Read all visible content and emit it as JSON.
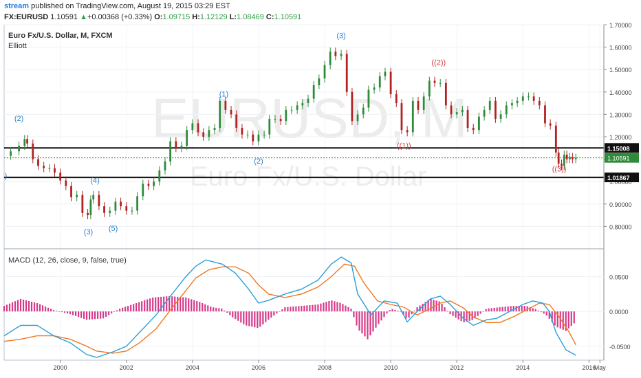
{
  "header": {
    "brand": "stream",
    "published": "published on TradingView.com, August 19, 2015 03:29 EST",
    "symbol": "FX:EURUSD",
    "last": "1.10591",
    "change": "+0.00368 (+0.33%)",
    "open_label": "O:",
    "open": "1.09715",
    "high_label": "H:",
    "high": "1.12129",
    "low_label": "L:",
    "low": "1.08469",
    "close_label": "C:",
    "close": "1.10591",
    "up_color": "#2e9e44"
  },
  "chart_data": [
    {
      "type": "candlestick",
      "title": "Euro Fx/U.S. Dollar, M, FXCM",
      "study": "Elliott",
      "watermark_symbol": "EURUSD, M",
      "watermark_name": "Euro Fx/U.S. Dollar",
      "x_range": [
        1998.3,
        2016.45
      ],
      "ylim": [
        0.7,
        1.7
      ],
      "y_ticks": [
        "1.70000",
        "1.60000",
        "1.50000",
        "1.40000",
        "1.30000",
        "1.20000",
        "1.10000",
        "1.00000",
        "0.90000",
        "0.80000"
      ],
      "x_ticks": [
        "2000",
        "2002",
        "2004",
        "2006",
        "2008",
        "2010",
        "2012",
        "2014",
        "2016",
        "May"
      ],
      "up_color": "#2e8b3a",
      "down_color": "#b22222",
      "closes": [
        [
          1998.5,
          1.135
        ],
        [
          1998.75,
          1.16
        ],
        [
          1998.92,
          1.19
        ],
        [
          1999.0,
          1.17
        ],
        [
          1999.17,
          1.1
        ],
        [
          1999.33,
          1.07
        ],
        [
          1999.5,
          1.06
        ],
        [
          1999.67,
          1.06
        ],
        [
          1999.83,
          1.04
        ],
        [
          2000.0,
          1.005
        ],
        [
          2000.17,
          0.98
        ],
        [
          2000.33,
          0.93
        ],
        [
          2000.5,
          0.94
        ],
        [
          2000.67,
          0.86
        ],
        [
          2000.83,
          0.85
        ],
        [
          2000.92,
          0.92
        ],
        [
          2001.0,
          0.94
        ],
        [
          2001.17,
          0.89
        ],
        [
          2001.33,
          0.86
        ],
        [
          2001.5,
          0.87
        ],
        [
          2001.67,
          0.91
        ],
        [
          2001.83,
          0.89
        ],
        [
          2002.0,
          0.87
        ],
        [
          2002.17,
          0.87
        ],
        [
          2002.33,
          0.935
        ],
        [
          2002.5,
          0.99
        ],
        [
          2002.67,
          0.98
        ],
        [
          2002.83,
          1.0
        ],
        [
          2003.0,
          1.05
        ],
        [
          2003.17,
          1.09
        ],
        [
          2003.33,
          1.18
        ],
        [
          2003.5,
          1.15
        ],
        [
          2003.67,
          1.16
        ],
        [
          2003.83,
          1.23
        ],
        [
          2004.0,
          1.26
        ],
        [
          2004.17,
          1.22
        ],
        [
          2004.33,
          1.2
        ],
        [
          2004.5,
          1.23
        ],
        [
          2004.67,
          1.24
        ],
        [
          2004.83,
          1.36
        ],
        [
          2005.0,
          1.32
        ],
        [
          2005.17,
          1.3
        ],
        [
          2005.33,
          1.24
        ],
        [
          2005.5,
          1.21
        ],
        [
          2005.67,
          1.21
        ],
        [
          2005.83,
          1.18
        ],
        [
          2006.0,
          1.21
        ],
        [
          2006.17,
          1.21
        ],
        [
          2006.33,
          1.28
        ],
        [
          2006.5,
          1.28
        ],
        [
          2006.67,
          1.27
        ],
        [
          2006.83,
          1.32
        ],
        [
          2007.0,
          1.32
        ],
        [
          2007.17,
          1.34
        ],
        [
          2007.33,
          1.35
        ],
        [
          2007.5,
          1.37
        ],
        [
          2007.67,
          1.43
        ],
        [
          2007.83,
          1.46
        ],
        [
          2008.0,
          1.52
        ],
        [
          2008.17,
          1.58
        ],
        [
          2008.33,
          1.56
        ],
        [
          2008.5,
          1.57
        ],
        [
          2008.67,
          1.4
        ],
        [
          2008.83,
          1.27
        ],
        [
          2009.0,
          1.3
        ],
        [
          2009.17,
          1.33
        ],
        [
          2009.33,
          1.41
        ],
        [
          2009.5,
          1.42
        ],
        [
          2009.67,
          1.47
        ],
        [
          2009.83,
          1.49
        ],
        [
          2010.0,
          1.39
        ],
        [
          2010.17,
          1.35
        ],
        [
          2010.33,
          1.23
        ],
        [
          2010.5,
          1.22
        ],
        [
          2010.67,
          1.36
        ],
        [
          2010.83,
          1.32
        ],
        [
          2011.0,
          1.38
        ],
        [
          2011.17,
          1.45
        ],
        [
          2011.33,
          1.44
        ],
        [
          2011.5,
          1.44
        ],
        [
          2011.67,
          1.34
        ],
        [
          2011.83,
          1.3
        ],
        [
          2012.0,
          1.31
        ],
        [
          2012.17,
          1.32
        ],
        [
          2012.33,
          1.24
        ],
        [
          2012.5,
          1.23
        ],
        [
          2012.67,
          1.29
        ],
        [
          2012.83,
          1.32
        ],
        [
          2013.0,
          1.36
        ],
        [
          2013.17,
          1.28
        ],
        [
          2013.33,
          1.3
        ],
        [
          2013.5,
          1.34
        ],
        [
          2013.67,
          1.35
        ],
        [
          2013.83,
          1.36
        ],
        [
          2014.0,
          1.38
        ],
        [
          2014.17,
          1.38
        ],
        [
          2014.33,
          1.36
        ],
        [
          2014.5,
          1.34
        ],
        [
          2014.67,
          1.26
        ],
        [
          2014.83,
          1.25
        ],
        [
          2015.0,
          1.13
        ],
        [
          2015.08,
          1.08
        ],
        [
          2015.17,
          1.07
        ],
        [
          2015.25,
          1.12
        ],
        [
          2015.33,
          1.1
        ],
        [
          2015.42,
          1.11
        ],
        [
          2015.5,
          1.1
        ],
        [
          2015.6,
          1.106
        ]
      ],
      "horizontal_lines": [
        {
          "y": 1.15008,
          "label": "1.15008",
          "style": "black"
        },
        {
          "y": 1.01867,
          "label": "1.01867",
          "style": "black"
        }
      ],
      "last_price": {
        "y": 1.10591,
        "label": "1.10591",
        "color": "#2e8b3a"
      },
      "wave_labels": [
        {
          "text": "(2)",
          "x": 1998.75,
          "y": 1.27,
          "color": "#2a7fd4"
        },
        {
          "text": ")",
          "x": 1998.35,
          "y": 1.015,
          "color": "#2a7fd4"
        },
        {
          "text": "(4)",
          "x": 2001.05,
          "y": 0.995,
          "color": "#2a7fd4"
        },
        {
          "text": "(3)",
          "x": 2000.85,
          "y": 0.765,
          "color": "#2a7fd4"
        },
        {
          "text": "(5)",
          "x": 2001.6,
          "y": 0.78,
          "color": "#2a7fd4"
        },
        {
          "text": "(1)",
          "x": 2004.95,
          "y": 1.38,
          "color": "#2a7fd4"
        },
        {
          "text": "(2)",
          "x": 2006.0,
          "y": 1.08,
          "color": "#2a7fd4"
        },
        {
          "text": "(3)",
          "x": 2008.5,
          "y": 1.64,
          "color": "#2a7fd4"
        },
        {
          "text": "((1))",
          "x": 2010.4,
          "y": 1.15,
          "color": "#d43a3a"
        },
        {
          "text": "((2))",
          "x": 2011.45,
          "y": 1.52,
          "color": "#d43a3a"
        },
        {
          "text": "((3))",
          "x": 2015.1,
          "y": 1.045,
          "color": "#d43a3a"
        }
      ]
    },
    {
      "type": "macd",
      "title": "MACD (12, 26, close, 9, false, true)",
      "ylim": [
        -0.07,
        0.09
      ],
      "y_ticks": [
        "0.0500",
        "0.0000",
        "-0.0500"
      ],
      "macd_color": "#2a9fd8",
      "signal_color": "#f07820",
      "hist_color": "#d63a8a",
      "macd": [
        [
          1998.3,
          -0.035
        ],
        [
          1998.8,
          -0.02
        ],
        [
          1999.3,
          -0.02
        ],
        [
          1999.8,
          -0.035
        ],
        [
          2000.3,
          -0.045
        ],
        [
          2000.8,
          -0.062
        ],
        [
          2001.1,
          -0.066
        ],
        [
          2001.6,
          -0.058
        ],
        [
          2002.0,
          -0.05
        ],
        [
          2002.4,
          -0.03
        ],
        [
          2002.9,
          -0.005
        ],
        [
          2003.3,
          0.02
        ],
        [
          2003.8,
          0.05
        ],
        [
          2004.1,
          0.065
        ],
        [
          2004.4,
          0.074
        ],
        [
          2004.9,
          0.068
        ],
        [
          2005.3,
          0.055
        ],
        [
          2005.7,
          0.032
        ],
        [
          2006.0,
          0.012
        ],
        [
          2006.3,
          0.016
        ],
        [
          2006.8,
          0.025
        ],
        [
          2007.3,
          0.032
        ],
        [
          2007.8,
          0.045
        ],
        [
          2008.2,
          0.068
        ],
        [
          2008.5,
          0.078
        ],
        [
          2008.8,
          0.07
        ],
        [
          2009.0,
          0.025
        ],
        [
          2009.4,
          -0.005
        ],
        [
          2009.8,
          0.015
        ],
        [
          2010.2,
          0.012
        ],
        [
          2010.5,
          -0.015
        ],
        [
          2010.8,
          0.0
        ],
        [
          2011.2,
          0.018
        ],
        [
          2011.5,
          0.022
        ],
        [
          2011.8,
          0.01
        ],
        [
          2012.2,
          -0.01
        ],
        [
          2012.5,
          -0.02
        ],
        [
          2012.9,
          -0.012
        ],
        [
          2013.2,
          -0.01
        ],
        [
          2013.6,
          0.0
        ],
        [
          2014.0,
          0.01
        ],
        [
          2014.3,
          0.015
        ],
        [
          2014.6,
          0.012
        ],
        [
          2014.8,
          0.0
        ],
        [
          2015.0,
          -0.03
        ],
        [
          2015.3,
          -0.055
        ],
        [
          2015.6,
          -0.063
        ]
      ],
      "signal": [
        [
          1998.3,
          -0.043
        ],
        [
          1998.8,
          -0.04
        ],
        [
          1999.3,
          -0.035
        ],
        [
          1999.8,
          -0.035
        ],
        [
          2000.3,
          -0.04
        ],
        [
          2000.8,
          -0.05
        ],
        [
          2001.1,
          -0.057
        ],
        [
          2001.6,
          -0.06
        ],
        [
          2002.0,
          -0.057
        ],
        [
          2002.4,
          -0.045
        ],
        [
          2002.9,
          -0.025
        ],
        [
          2003.3,
          0.0
        ],
        [
          2003.8,
          0.03
        ],
        [
          2004.1,
          0.048
        ],
        [
          2004.5,
          0.06
        ],
        [
          2004.9,
          0.064
        ],
        [
          2005.3,
          0.064
        ],
        [
          2005.7,
          0.055
        ],
        [
          2006.0,
          0.038
        ],
        [
          2006.3,
          0.025
        ],
        [
          2006.8,
          0.02
        ],
        [
          2007.3,
          0.025
        ],
        [
          2007.8,
          0.035
        ],
        [
          2008.2,
          0.05
        ],
        [
          2008.6,
          0.068
        ],
        [
          2008.9,
          0.065
        ],
        [
          2009.2,
          0.04
        ],
        [
          2009.6,
          0.015
        ],
        [
          2010.0,
          0.01
        ],
        [
          2010.4,
          0.006
        ],
        [
          2010.8,
          -0.005
        ],
        [
          2011.2,
          0.004
        ],
        [
          2011.5,
          0.012
        ],
        [
          2011.8,
          0.015
        ],
        [
          2012.2,
          0.005
        ],
        [
          2012.5,
          -0.008
        ],
        [
          2012.9,
          -0.016
        ],
        [
          2013.3,
          -0.016
        ],
        [
          2013.7,
          -0.008
        ],
        [
          2014.1,
          0.002
        ],
        [
          2014.5,
          0.012
        ],
        [
          2014.8,
          0.01
        ],
        [
          2015.1,
          -0.008
        ],
        [
          2015.4,
          -0.03
        ],
        [
          2015.6,
          -0.048
        ]
      ],
      "histogram": [
        [
          1998.3,
          0.008
        ],
        [
          1998.8,
          0.018
        ],
        [
          1999.3,
          0.012
        ],
        [
          1999.8,
          0.002
        ],
        [
          2000.3,
          -0.004
        ],
        [
          2000.8,
          -0.012
        ],
        [
          2001.3,
          -0.01
        ],
        [
          2001.8,
          0.004
        ],
        [
          2002.3,
          0.012
        ],
        [
          2002.8,
          0.02
        ],
        [
          2003.3,
          0.022
        ],
        [
          2003.8,
          0.02
        ],
        [
          2004.2,
          0.014
        ],
        [
          2004.6,
          0.006
        ],
        [
          2004.9,
          0.004
        ],
        [
          2005.2,
          -0.008
        ],
        [
          2005.6,
          -0.02
        ],
        [
          2006.0,
          -0.024
        ],
        [
          2006.3,
          -0.012
        ],
        [
          2006.8,
          0.006
        ],
        [
          2007.3,
          0.008
        ],
        [
          2007.8,
          0.01
        ],
        [
          2008.2,
          0.016
        ],
        [
          2008.5,
          0.012
        ],
        [
          2008.8,
          0.004
        ],
        [
          2009.0,
          -0.025
        ],
        [
          2009.3,
          -0.04
        ],
        [
          2009.6,
          -0.02
        ],
        [
          2010.0,
          0.004
        ],
        [
          2010.3,
          0.0
        ],
        [
          2010.5,
          -0.012
        ],
        [
          2010.8,
          0.006
        ],
        [
          2011.2,
          0.018
        ],
        [
          2011.5,
          0.014
        ],
        [
          2011.8,
          -0.004
        ],
        [
          2012.2,
          -0.016
        ],
        [
          2012.5,
          -0.012
        ],
        [
          2012.9,
          0.004
        ],
        [
          2013.3,
          0.006
        ],
        [
          2013.7,
          0.008
        ],
        [
          2014.1,
          0.008
        ],
        [
          2014.4,
          0.003
        ],
        [
          2014.7,
          -0.005
        ],
        [
          2015.0,
          -0.022
        ],
        [
          2015.3,
          -0.028
        ],
        [
          2015.6,
          -0.015
        ]
      ]
    }
  ]
}
